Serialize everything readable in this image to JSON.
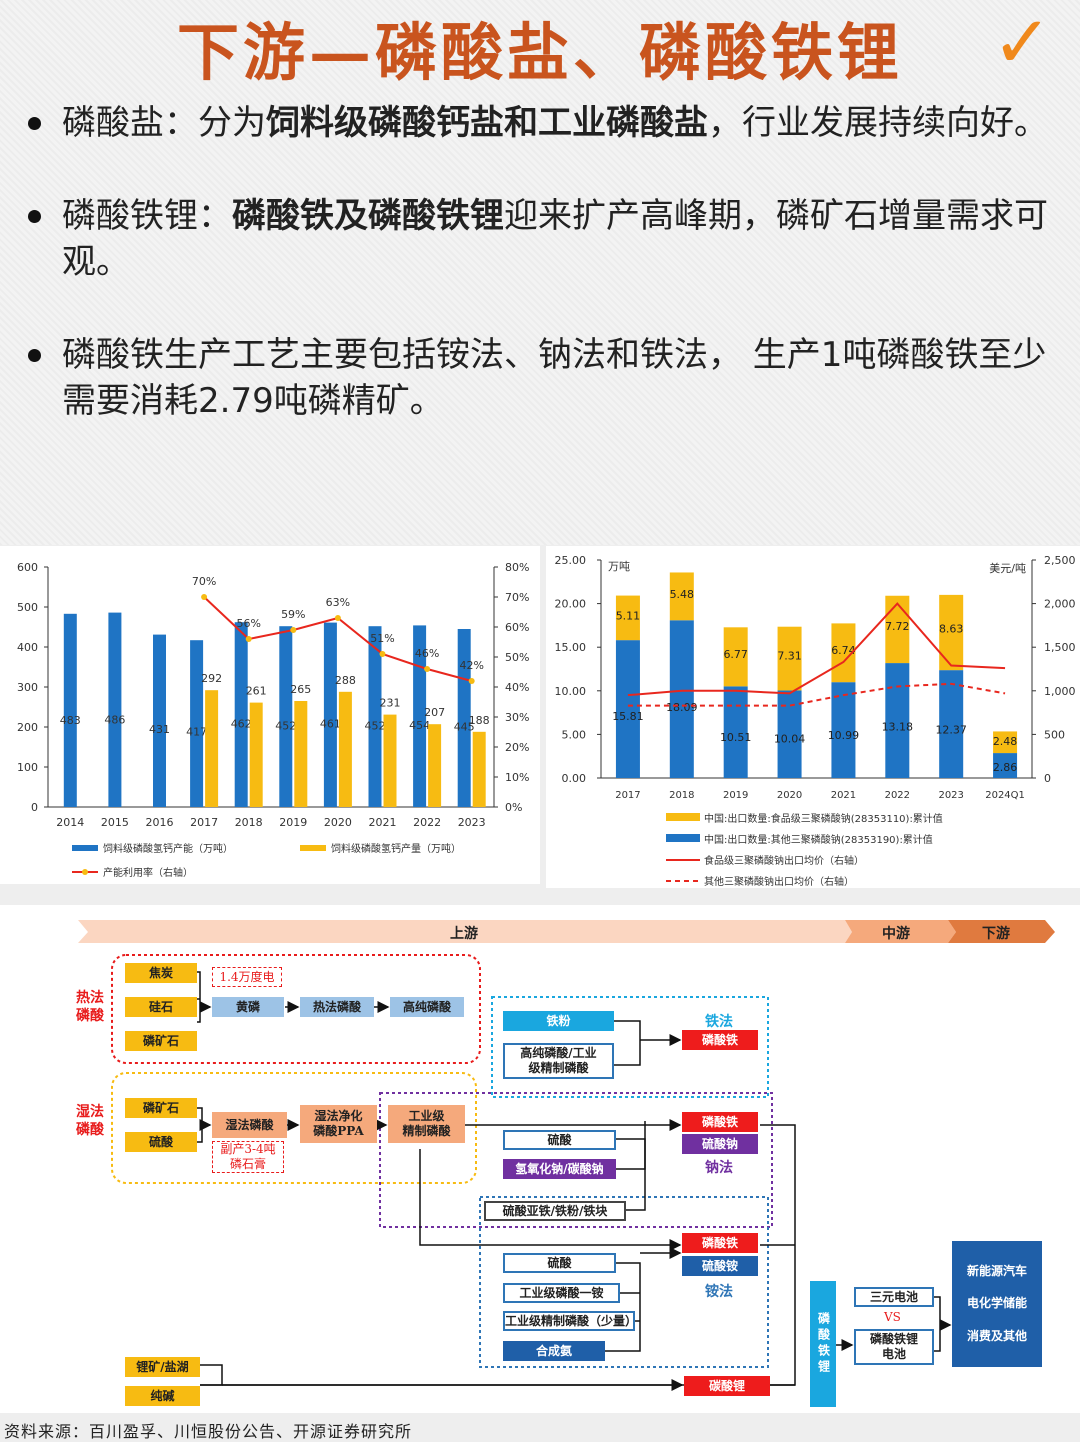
{
  "header": {
    "title": "下游—磷酸盐、磷酸铁锂",
    "check_glyph": "✓"
  },
  "bullets": [
    {
      "prefix": "磷酸盐：分为",
      "bold": "饲料级磷酸钙盐和工业磷酸盐",
      "suffix": "，行业发展持续向好。"
    },
    {
      "prefix": " 磷酸铁锂：",
      "bold": "磷酸铁及磷酸铁锂",
      "suffix": "迎来扩产高峰期，磷矿石增量需求可观。"
    },
    {
      "prefix": "磷酸铁生产工艺主要包括铵法、钠法和铁法， 生产1吨磷酸铁至少需要消耗2.79吨磷精矿。",
      "bold": "",
      "suffix": ""
    }
  ],
  "chart_data": [
    {
      "type": "bar",
      "categories": [
        "2014",
        "2015",
        "2016",
        "2017",
        "2018",
        "2019",
        "2020",
        "2021",
        "2022",
        "2023"
      ],
      "series": [
        {
          "name": "饲料级磷酸氢钙产能（万吨）",
          "kind": "bar",
          "color": "#1f74c4",
          "values": [
            483,
            486,
            431,
            417,
            462,
            452,
            461,
            452,
            454,
            445
          ]
        },
        {
          "name": "饲料级磷酸氢钙产量（万吨）",
          "kind": "bar",
          "color": "#f7bb12",
          "values": [
            null,
            null,
            null,
            292,
            261,
            265,
            288,
            231,
            207,
            188
          ]
        },
        {
          "name": "产能利用率（右轴）",
          "kind": "line",
          "axis": "right",
          "color": "#e8271e",
          "values": [
            null,
            null,
            null,
            70,
            56,
            59,
            63,
            51,
            46,
            42
          ],
          "labels": [
            "",
            "",
            "",
            "70%",
            "56%",
            "59%",
            "63%",
            "51%",
            "46%",
            "42%"
          ]
        }
      ],
      "ylim": [
        0,
        600
      ],
      "yticks": [
        "0",
        "100",
        "200",
        "300",
        "400",
        "500",
        "600"
      ],
      "y2lim": [
        0,
        80
      ],
      "y2ticks": [
        "0%",
        "10%",
        "20%",
        "30%",
        "40%",
        "50%",
        "60%",
        "70%",
        "80%"
      ],
      "legend_position": "bottom"
    },
    {
      "type": "bar",
      "categories": [
        "2017",
        "2018",
        "2019",
        "2020",
        "2021",
        "2022",
        "2023",
        "2024Q1"
      ],
      "series": [
        {
          "name": "中国:出口数量:其他三聚磷酸钠(28353190):累计值",
          "kind": "bar",
          "stack": "s",
          "color": "#1f74c4",
          "values": [
            15.81,
            18.09,
            10.51,
            10.04,
            10.99,
            13.18,
            12.37,
            2.86
          ]
        },
        {
          "name": "中国:出口数量:食品级三聚磷酸钠(28353110):累计值",
          "kind": "bar",
          "stack": "s",
          "color": "#f7bb12",
          "values": [
            5.11,
            5.48,
            6.77,
            7.31,
            6.74,
            7.72,
            8.63,
            2.48
          ]
        },
        {
          "name": "食品级三聚磷酸钠出口均价（右轴）",
          "kind": "line",
          "axis": "right",
          "color": "#e8271e",
          "dash": false,
          "values": [
            null,
            null,
            null,
            970,
            1330,
            2000,
            1290,
            1260
          ]
        },
        {
          "name": "其他三聚磷酸钠出口均价（右轴）",
          "kind": "line",
          "axis": "right",
          "color": "#e8271e",
          "dash": true,
          "values": [
            null,
            null,
            null,
            830,
            950,
            1050,
            1080,
            970
          ]
        }
      ],
      "ylim": [
        0,
        25
      ],
      "yticks": [
        "0.00",
        "5.00",
        "10.00",
        "15.00",
        "20.00",
        "25.00"
      ],
      "y2lim": [
        0,
        2500
      ],
      "y2ticks": [
        "0",
        "500",
        "1,000",
        "1,500",
        "2,000",
        "2,500"
      ],
      "ylabel": "万吨",
      "y2label": "美元/吨",
      "legend_position": "bottom"
    }
  ],
  "chart2_x0_line_values": [
    950,
    1000,
    1000,
    970
  ],
  "chart2_x0_dash_values": [
    830,
    830,
    830,
    830
  ],
  "flow": {
    "stages": {
      "up": "上游",
      "mid": "中游",
      "down": "下游"
    },
    "thermal_label": "热法\n磷酸",
    "wet_label": "湿法\n磷酸",
    "thermal_inputs": [
      "焦炭",
      "硅石",
      "磷矿石"
    ],
    "power_note": "1.4万度电",
    "thermal_chain": [
      "黄磷",
      "热法磷酸",
      "高纯磷酸"
    ],
    "wet_inputs": [
      "磷矿石",
      "硫酸"
    ],
    "wet_chain": [
      "湿法磷酸",
      "湿法净化\n磷酸PPA",
      "工业级\n精制磷酸"
    ],
    "gypsum_note": "副产3-4吨\n磷石膏",
    "iron_method": {
      "inputs": [
        "铁粉",
        "高纯磷酸/工业\n级精制磷酸"
      ],
      "output": "磷酸铁",
      "name": "铁法"
    },
    "sodium_method": {
      "inputs": [
        "硫酸",
        "氢氧化钠/碳酸钠"
      ],
      "outputs": [
        "磷酸铁",
        "硫酸钠"
      ],
      "name": "钠法"
    },
    "ferrous": "硫酸亚铁/铁粉/铁块",
    "ammonium_method": {
      "inputs": [
        "硫酸",
        "工业级磷酸一铵",
        "工业级精制磷酸（少量）",
        "合成氨"
      ],
      "outputs": [
        "磷酸铁",
        "硫酸铵"
      ],
      "name": "铵法"
    },
    "lithium_inputs": [
      "锂矿/盐湖",
      "纯碱"
    ],
    "lithium_carbonate": "碳酸锂",
    "lfp_vertical": "磷酸铁锂",
    "battery_a": "三元电池",
    "vs": "VS",
    "battery_b": "磷酸铁锂\n电池",
    "applications": [
      "新能源汽车",
      "电化学储能",
      "消费及其他"
    ]
  },
  "footer": {
    "source": "资料来源：百川盈孚、川恒股份公告、开源证券研究所"
  }
}
